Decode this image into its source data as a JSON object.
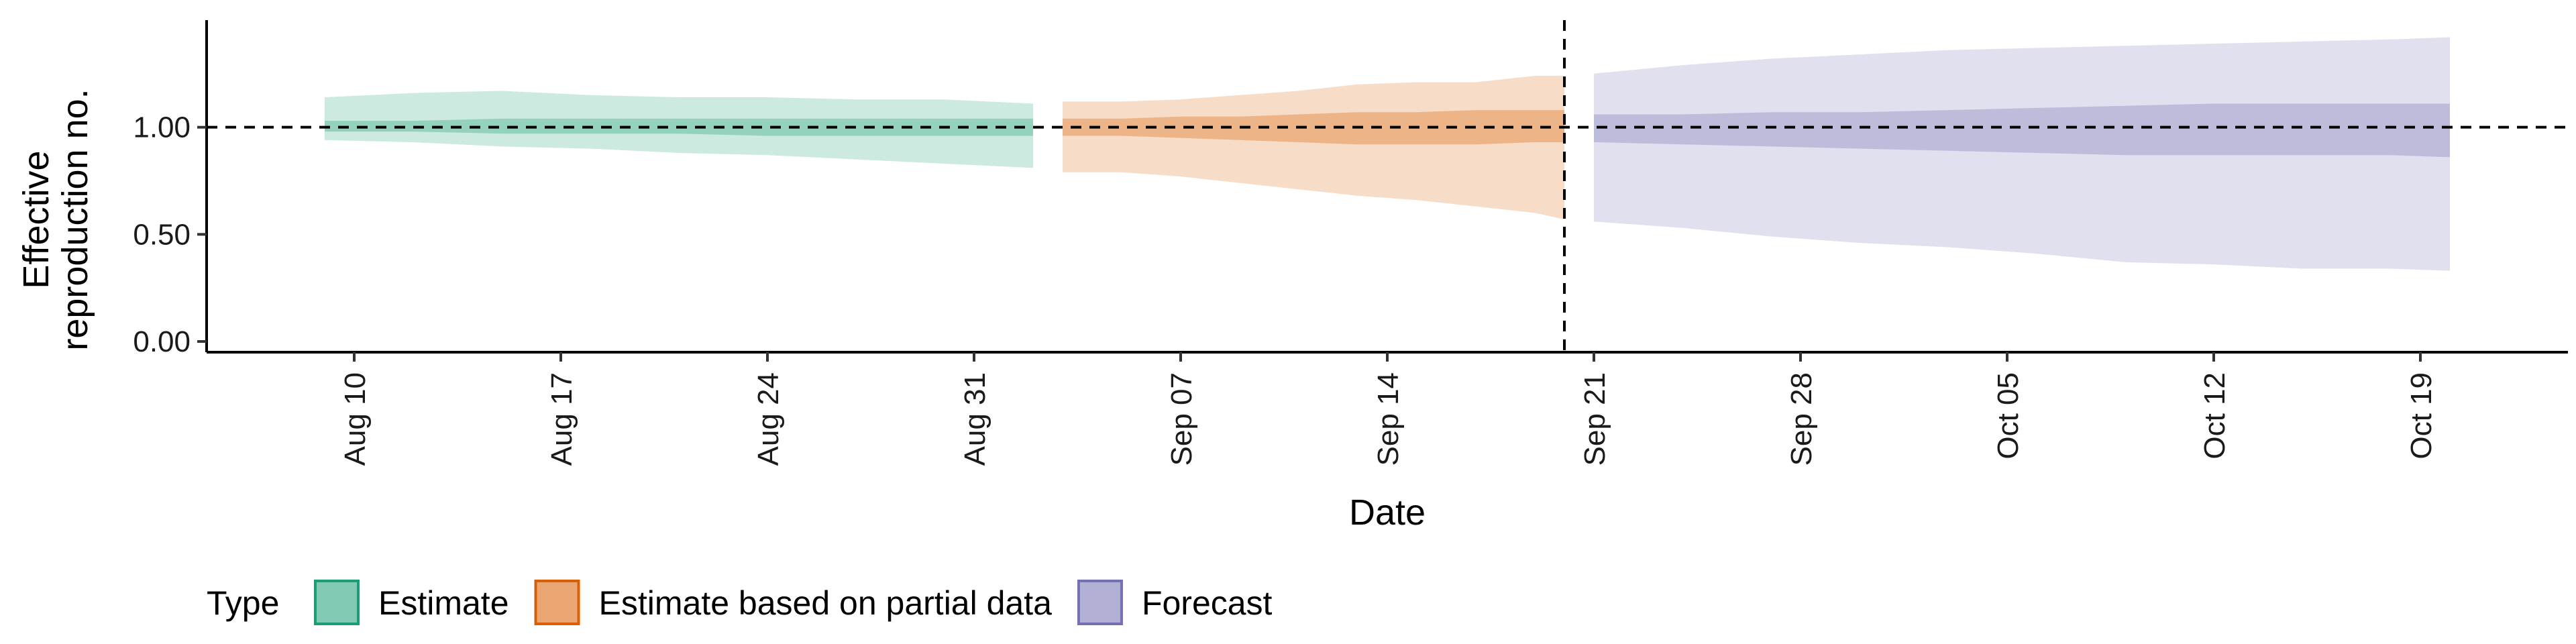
{
  "chart_data": {
    "type": "area",
    "xlabel": "Date",
    "ylabel": [
      "Effective",
      "reproduction no."
    ],
    "ylim": [
      -0.05,
      1.5
    ],
    "yticks": [
      0.0,
      0.5,
      1.0
    ],
    "ytick_labels": [
      "0.00",
      "0.50",
      "1.00"
    ],
    "xlim": [
      "2020-08-05",
      "2020-10-24"
    ],
    "xticks": [
      "2020-08-10",
      "2020-08-17",
      "2020-08-24",
      "2020-08-31",
      "2020-09-07",
      "2020-09-14",
      "2020-09-21",
      "2020-09-28",
      "2020-10-05",
      "2020-10-12",
      "2020-10-19"
    ],
    "xtick_labels": [
      "Aug 10",
      "Aug 17",
      "Aug 24",
      "Aug 31",
      "Sep 07",
      "Sep 14",
      "Sep 21",
      "Sep 28",
      "Oct 05",
      "Oct 12",
      "Oct 19"
    ],
    "reference_line_y": 1.0,
    "vertical_line_x": "2020-09-20",
    "grid": false,
    "legend_position": "bottom",
    "legend_title": "Type",
    "series": [
      {
        "name": "Estimate",
        "color": "#1b9e77",
        "x": [
          "2020-08-09",
          "2020-08-12",
          "2020-08-15",
          "2020-08-18",
          "2020-08-21",
          "2020-08-24",
          "2020-08-27",
          "2020-08-30",
          "2020-09-02"
        ],
        "lower_90": [
          0.94,
          0.93,
          0.91,
          0.9,
          0.88,
          0.87,
          0.85,
          0.83,
          0.81
        ],
        "upper_90": [
          1.14,
          1.16,
          1.17,
          1.15,
          1.14,
          1.14,
          1.13,
          1.13,
          1.11
        ],
        "lower_50": [
          0.98,
          0.98,
          0.97,
          0.97,
          0.97,
          0.96,
          0.96,
          0.96,
          0.96
        ],
        "upper_50": [
          1.03,
          1.03,
          1.04,
          1.04,
          1.04,
          1.04,
          1.04,
          1.04,
          1.04
        ]
      },
      {
        "name": "Estimate based on partial data",
        "color": "#d95f02",
        "x": [
          "2020-09-03",
          "2020-09-05",
          "2020-09-07",
          "2020-09-09",
          "2020-09-11",
          "2020-09-13",
          "2020-09-15",
          "2020-09-17",
          "2020-09-19",
          "2020-09-20"
        ],
        "lower_90": [
          0.79,
          0.79,
          0.77,
          0.74,
          0.71,
          0.68,
          0.66,
          0.63,
          0.6,
          0.57
        ],
        "upper_90": [
          1.12,
          1.12,
          1.13,
          1.15,
          1.17,
          1.2,
          1.21,
          1.21,
          1.24,
          1.24
        ],
        "lower_50": [
          0.96,
          0.96,
          0.95,
          0.94,
          0.93,
          0.92,
          0.92,
          0.92,
          0.93,
          0.93
        ],
        "upper_50": [
          1.04,
          1.04,
          1.05,
          1.05,
          1.06,
          1.07,
          1.07,
          1.08,
          1.08,
          1.08
        ]
      },
      {
        "name": "Forecast",
        "color": "#7570b3",
        "x": [
          "2020-09-21",
          "2020-09-24",
          "2020-09-27",
          "2020-09-30",
          "2020-10-03",
          "2020-10-06",
          "2020-10-09",
          "2020-10-12",
          "2020-10-15",
          "2020-10-18",
          "2020-10-20"
        ],
        "lower_90": [
          0.56,
          0.53,
          0.49,
          0.46,
          0.44,
          0.41,
          0.37,
          0.36,
          0.34,
          0.34,
          0.33
        ],
        "upper_90": [
          1.25,
          1.29,
          1.32,
          1.34,
          1.36,
          1.37,
          1.38,
          1.39,
          1.4,
          1.41,
          1.42
        ],
        "lower_50": [
          0.93,
          0.92,
          0.91,
          0.9,
          0.89,
          0.88,
          0.87,
          0.87,
          0.87,
          0.87,
          0.86
        ],
        "upper_50": [
          1.06,
          1.06,
          1.07,
          1.07,
          1.08,
          1.09,
          1.1,
          1.11,
          1.11,
          1.11,
          1.11
        ]
      }
    ]
  }
}
